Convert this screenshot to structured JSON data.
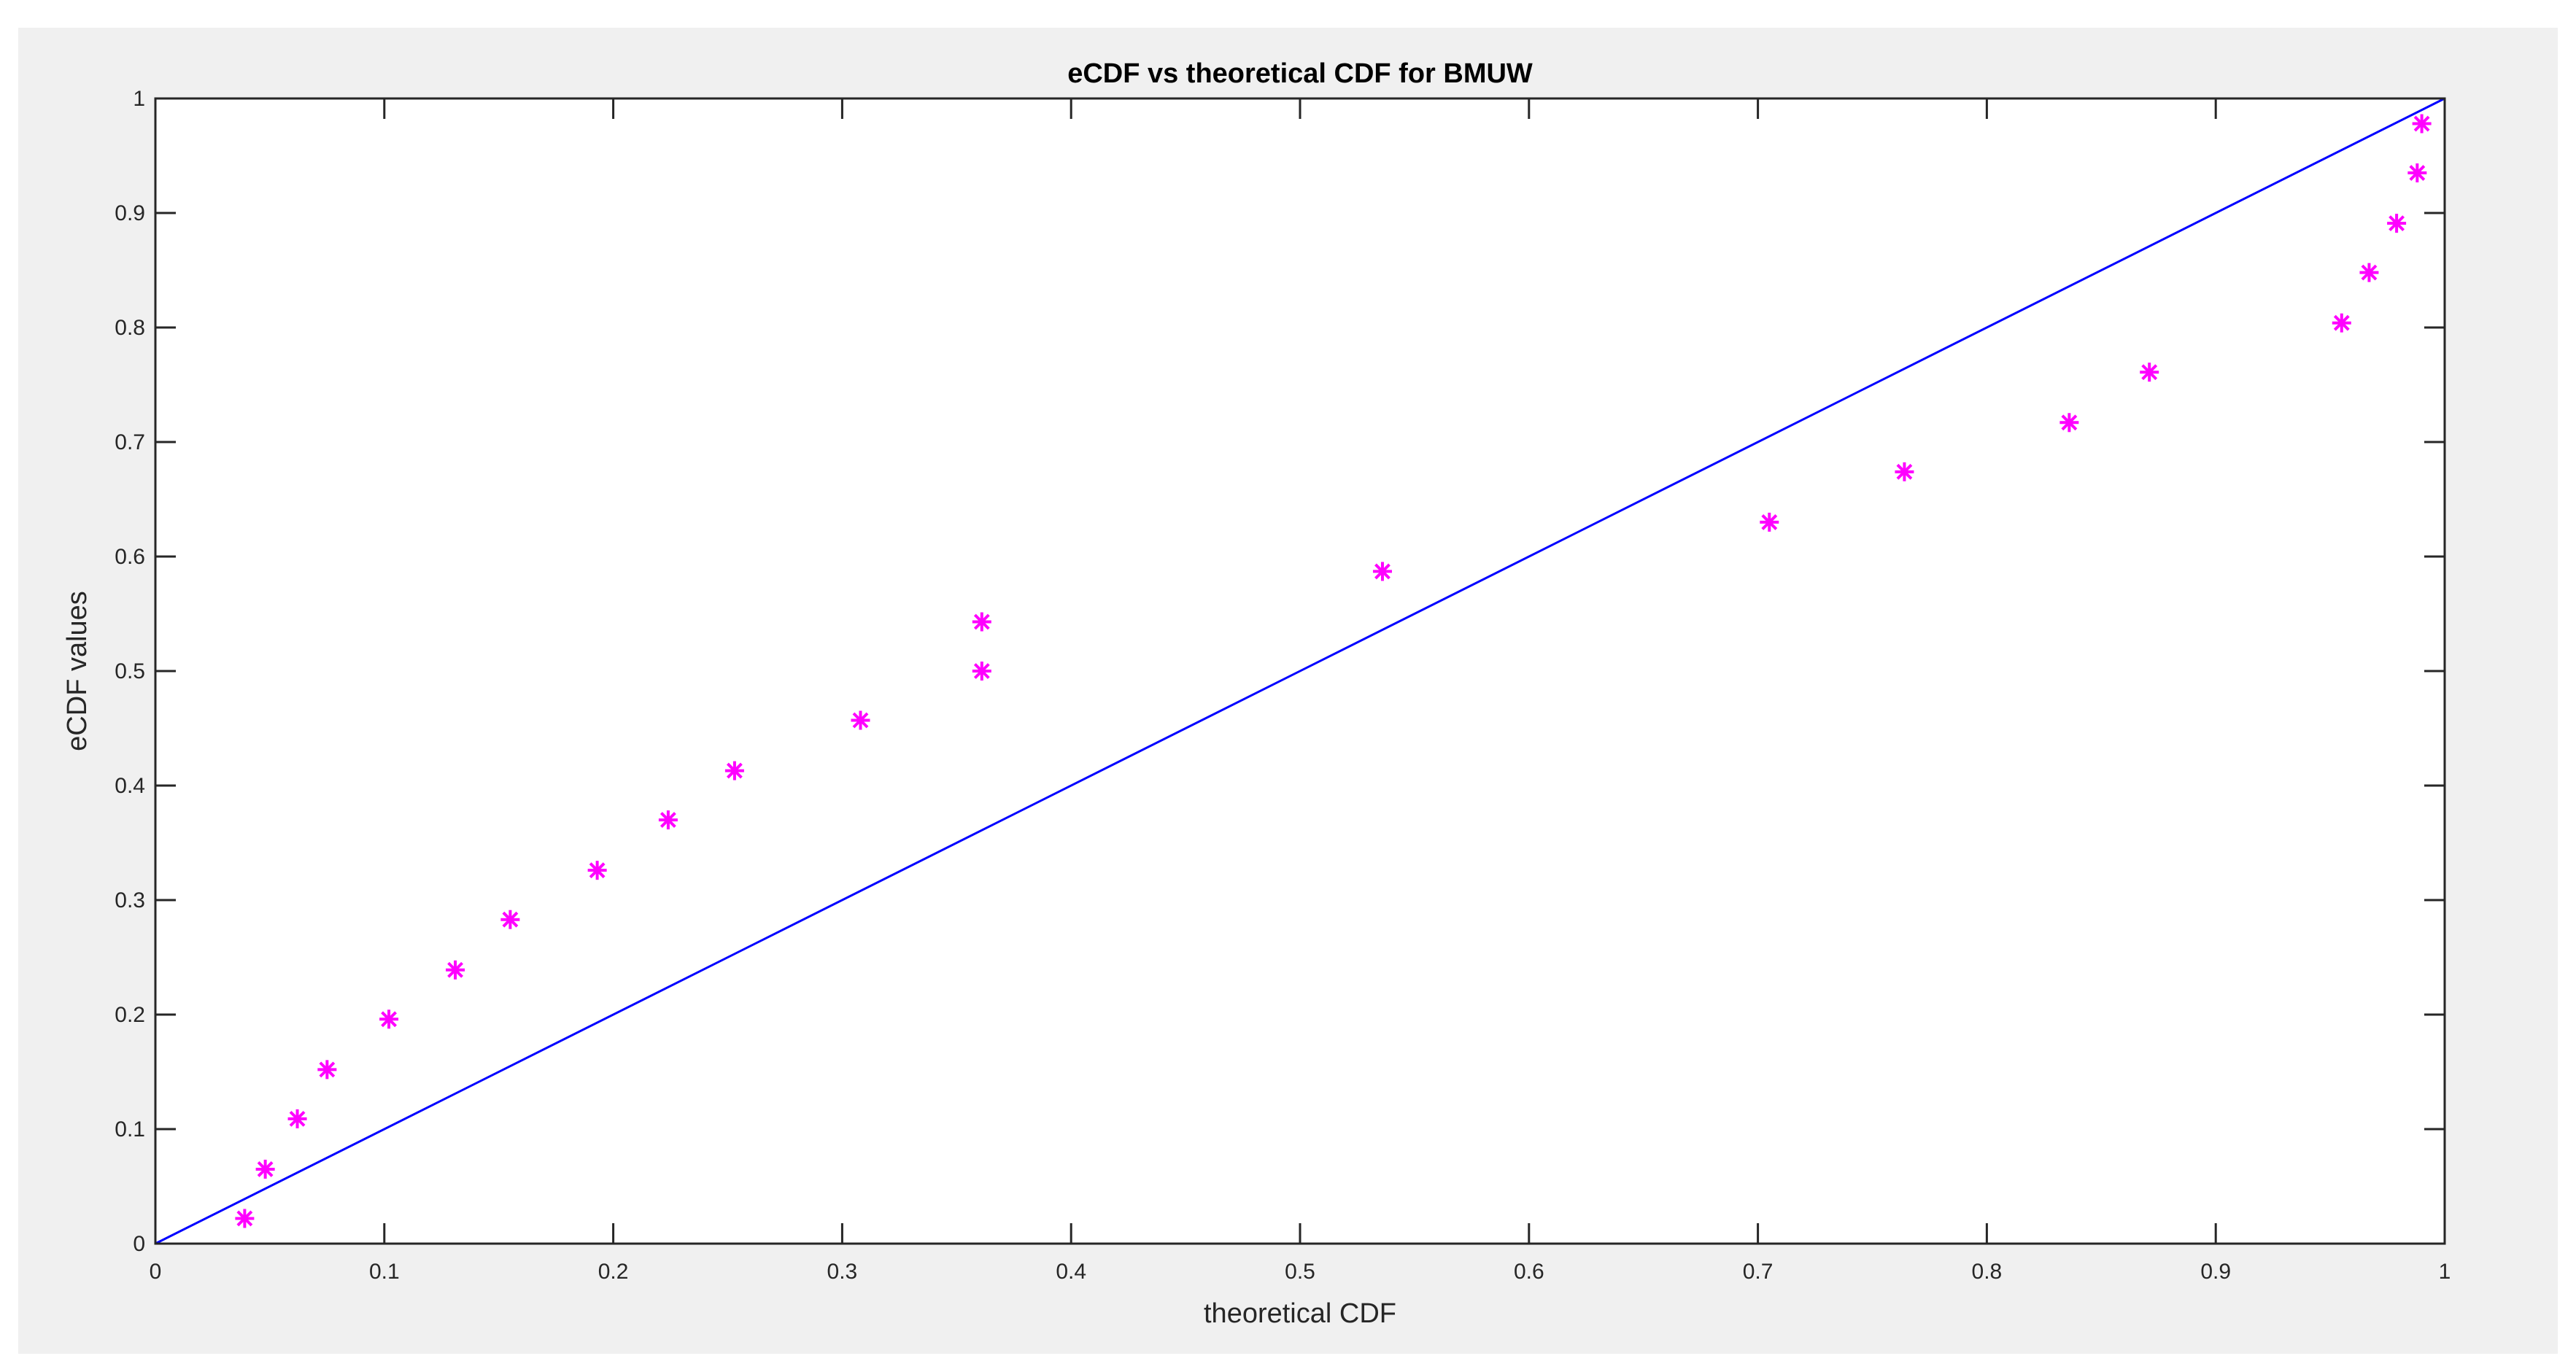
{
  "chart_data": {
    "type": "scatter",
    "title": "eCDF vs theoretical CDF for BMUW",
    "xlabel": "theoretical CDF",
    "ylabel": "eCDF values",
    "xlim": [
      0,
      1
    ],
    "ylim": [
      0,
      1
    ],
    "xticks": [
      "0",
      "0.1",
      "0.2",
      "0.3",
      "0.4",
      "0.5",
      "0.6",
      "0.7",
      "0.8",
      "0.9",
      "1"
    ],
    "yticks": [
      "0",
      "0.1",
      "0.2",
      "0.3",
      "0.4",
      "0.5",
      "0.6",
      "0.7",
      "0.8",
      "0.9",
      "1"
    ],
    "grid": false,
    "reference_line": {
      "x": [
        0,
        1
      ],
      "y": [
        0,
        1
      ],
      "color": "#0000ff"
    },
    "series": [
      {
        "marker": "asterisk",
        "color": "#ff00ff",
        "points": [
          {
            "x": 0.039,
            "y": 0.022
          },
          {
            "x": 0.048,
            "y": 0.065
          },
          {
            "x": 0.062,
            "y": 0.109
          },
          {
            "x": 0.075,
            "y": 0.152
          },
          {
            "x": 0.102,
            "y": 0.196
          },
          {
            "x": 0.131,
            "y": 0.239
          },
          {
            "x": 0.155,
            "y": 0.283
          },
          {
            "x": 0.193,
            "y": 0.326
          },
          {
            "x": 0.224,
            "y": 0.37
          },
          {
            "x": 0.253,
            "y": 0.413
          },
          {
            "x": 0.308,
            "y": 0.457
          },
          {
            "x": 0.361,
            "y": 0.5
          },
          {
            "x": 0.361,
            "y": 0.543
          },
          {
            "x": 0.536,
            "y": 0.587
          },
          {
            "x": 0.705,
            "y": 0.63
          },
          {
            "x": 0.764,
            "y": 0.674
          },
          {
            "x": 0.836,
            "y": 0.717
          },
          {
            "x": 0.871,
            "y": 0.761
          },
          {
            "x": 0.955,
            "y": 0.804
          },
          {
            "x": 0.967,
            "y": 0.848
          },
          {
            "x": 0.979,
            "y": 0.891
          },
          {
            "x": 0.988,
            "y": 0.935
          },
          {
            "x": 0.99,
            "y": 0.978
          }
        ]
      }
    ]
  }
}
